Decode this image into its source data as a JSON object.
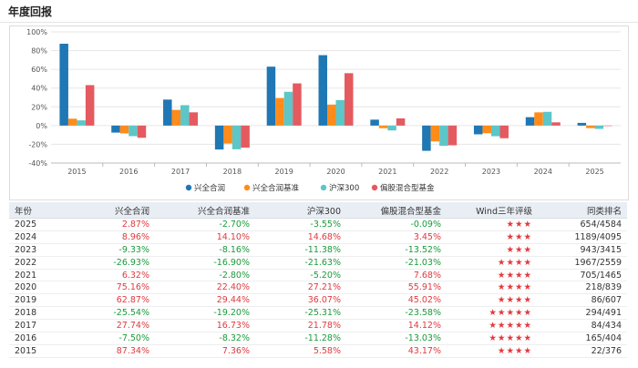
{
  "page": {
    "title": "年度回报"
  },
  "colors": {
    "series": [
      "#1f77b4",
      "#ff8c1a",
      "#5cc6c9",
      "#e45a5f"
    ],
    "positive": "#e0393e",
    "negative": "#1a9a3a",
    "star": "#e0393e",
    "grid": "#e6e6e6"
  },
  "chart_data": {
    "type": "bar",
    "categories": [
      "2015",
      "2016",
      "2017",
      "2018",
      "2019",
      "2020",
      "2021",
      "2022",
      "2023",
      "2024",
      "2025"
    ],
    "series": [
      {
        "name": "兴全合润",
        "values": [
          87.34,
          -7.5,
          27.74,
          -25.54,
          62.87,
          75.16,
          6.32,
          -26.93,
          -9.33,
          8.96,
          2.87
        ]
      },
      {
        "name": "兴全合润基准",
        "values": [
          7.36,
          -8.32,
          16.73,
          -19.2,
          29.44,
          22.4,
          -2.8,
          -16.9,
          -8.16,
          14.1,
          -2.7
        ]
      },
      {
        "name": "沪深300",
        "values": [
          5.58,
          -11.28,
          21.78,
          -25.31,
          36.07,
          27.21,
          -5.2,
          -21.63,
          -11.38,
          14.68,
          -3.55
        ]
      },
      {
        "name": "偏股混合型基金",
        "values": [
          43.17,
          -13.03,
          14.12,
          -23.58,
          45.02,
          55.91,
          7.68,
          -21.03,
          -13.52,
          3.45,
          -0.09
        ]
      }
    ],
    "ylim": [
      -40,
      100
    ],
    "yticks": [
      -40,
      -20,
      0,
      20,
      40,
      60,
      80,
      100
    ],
    "ytick_labels": [
      "-40%",
      "-20%",
      "0%",
      "20%",
      "40%",
      "60%",
      "80%",
      "100%"
    ],
    "xlabel": "",
    "ylabel": "",
    "grid": true,
    "legend_position": "bottom"
  },
  "table": {
    "headers": [
      "年份",
      "兴全合润",
      "兴全合润基准",
      "沪深300",
      "偏股混合型基金",
      "Wind三年评级",
      "同类排名"
    ],
    "rows": [
      {
        "year": "2025",
        "fund": "2.87%",
        "bench": "-2.70%",
        "hs300": "-3.55%",
        "avg": "-0.09%",
        "stars": "★★★",
        "rank": "654/4584"
      },
      {
        "year": "2024",
        "fund": "8.96%",
        "bench": "14.10%",
        "hs300": "14.68%",
        "avg": "3.45%",
        "stars": "★★★",
        "rank": "1189/4095"
      },
      {
        "year": "2023",
        "fund": "-9.33%",
        "bench": "-8.16%",
        "hs300": "-11.38%",
        "avg": "-13.52%",
        "stars": "★★★",
        "rank": "943/3415"
      },
      {
        "year": "2022",
        "fund": "-26.93%",
        "bench": "-16.90%",
        "hs300": "-21.63%",
        "avg": "-21.03%",
        "stars": "★★★★",
        "rank": "1967/2559"
      },
      {
        "year": "2021",
        "fund": "6.32%",
        "bench": "-2.80%",
        "hs300": "-5.20%",
        "avg": "7.68%",
        "stars": "★★★★",
        "rank": "705/1465"
      },
      {
        "year": "2020",
        "fund": "75.16%",
        "bench": "22.40%",
        "hs300": "27.21%",
        "avg": "55.91%",
        "stars": "★★★★",
        "rank": "218/839"
      },
      {
        "year": "2019",
        "fund": "62.87%",
        "bench": "29.44%",
        "hs300": "36.07%",
        "avg": "45.02%",
        "stars": "★★★★",
        "rank": "86/607"
      },
      {
        "year": "2018",
        "fund": "-25.54%",
        "bench": "-19.20%",
        "hs300": "-25.31%",
        "avg": "-23.58%",
        "stars": "★★★★★",
        "rank": "294/491"
      },
      {
        "year": "2017",
        "fund": "27.74%",
        "bench": "16.73%",
        "hs300": "21.78%",
        "avg": "14.12%",
        "stars": "★★★★★",
        "rank": "84/434"
      },
      {
        "year": "2016",
        "fund": "-7.50%",
        "bench": "-8.32%",
        "hs300": "-11.28%",
        "avg": "-13.03%",
        "stars": "★★★★★",
        "rank": "165/404"
      },
      {
        "year": "2015",
        "fund": "87.34%",
        "bench": "7.36%",
        "hs300": "5.58%",
        "avg": "43.17%",
        "stars": "★★★★",
        "rank": "22/376"
      }
    ]
  }
}
